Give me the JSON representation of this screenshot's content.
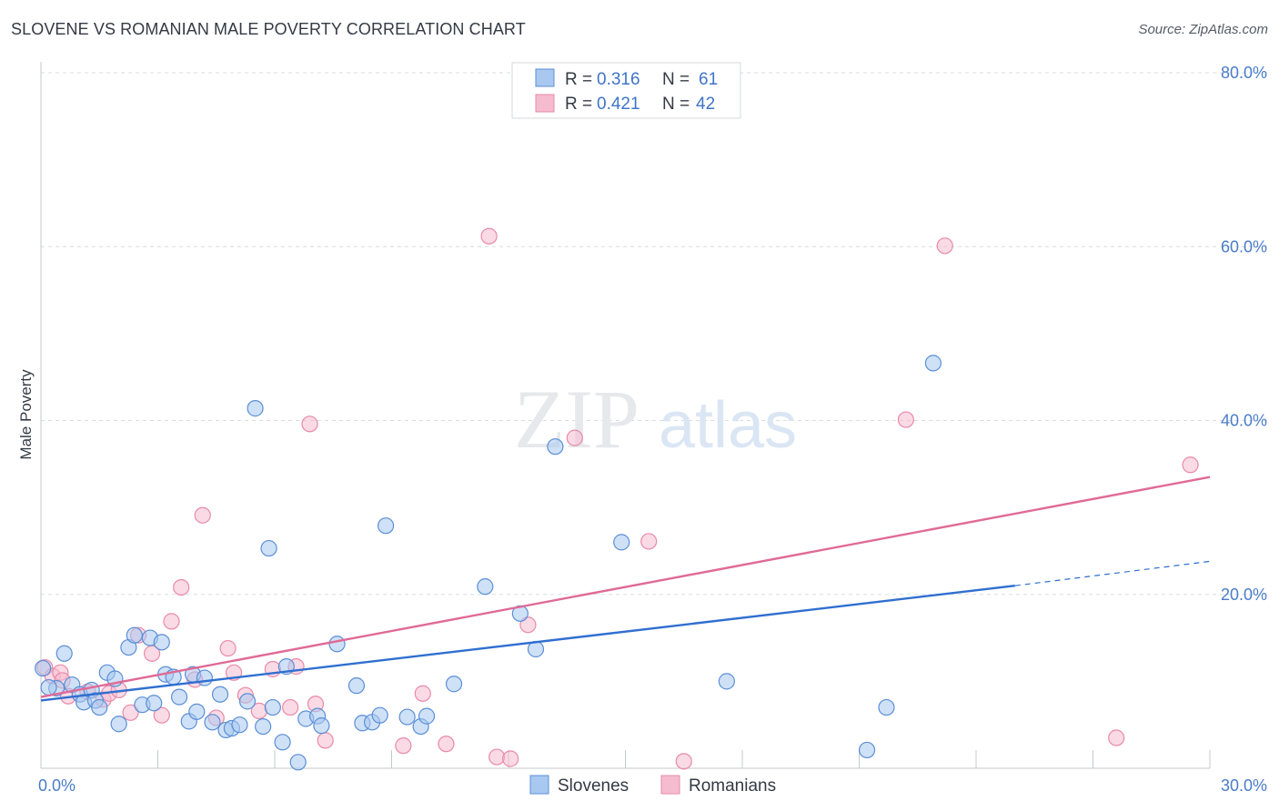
{
  "title": "SLOVENE VS ROMANIAN MALE POVERTY CORRELATION CHART",
  "source": "Source: ZipAtlas.com",
  "watermark": {
    "zip": "ZIP",
    "atlas": "atlas"
  },
  "colors": {
    "slovenes_fill": "#a8c8f0",
    "slovenes_stroke": "#5b8fd6",
    "slovenes_line": "#2f6fd0",
    "romanians_fill": "#f5bcd0",
    "romanians_stroke": "#e88aa8",
    "romanians_line": "#e06a96",
    "tick_label": "#4a7cc9",
    "grid": "#d9dde3"
  },
  "legend": {
    "items": [
      {
        "r_label": "R = ",
        "r_value": "0.316",
        "n_label": "N = ",
        "n_value": "61"
      },
      {
        "r_label": "R = ",
        "r_value": "0.421",
        "n_label": "N = ",
        "n_value": "42"
      }
    ]
  },
  "chart_data": {
    "type": "scatter",
    "title": "SLOVENE VS ROMANIAN MALE POVERTY CORRELATION CHART",
    "xlabel": "",
    "ylabel": "Male Poverty",
    "xlim": [
      0,
      30
    ],
    "ylim": [
      0,
      80
    ],
    "x_tick_labels": [
      {
        "value": 0,
        "label": "0.0%"
      },
      {
        "value": 30,
        "label": "30.0%"
      }
    ],
    "y_tick_labels": [
      {
        "value": 20,
        "label": "20.0%"
      },
      {
        "value": 40,
        "label": "40.0%"
      },
      {
        "value": 60,
        "label": "60.0%"
      },
      {
        "value": 80,
        "label": "80.0%"
      }
    ],
    "y_gridlines": [
      20,
      40,
      60,
      80
    ],
    "legend_position": "top-center",
    "series": [
      {
        "name": "Slovenes",
        "r": 0.316,
        "n": 61,
        "trend": {
          "x_start": 0,
          "y_start": 7.8,
          "x_solid_end": 25,
          "y_solid_end": 21.0,
          "x_end": 30,
          "y_end": 23.8
        },
        "points": [
          [
            0.05,
            11.5
          ],
          [
            0.4,
            9.2
          ],
          [
            0.6,
            13.2
          ],
          [
            0.8,
            9.6
          ],
          [
            1.0,
            8.5
          ],
          [
            1.1,
            7.6
          ],
          [
            1.3,
            9.0
          ],
          [
            1.4,
            7.8
          ],
          [
            1.5,
            7.0
          ],
          [
            1.7,
            11.0
          ],
          [
            1.9,
            10.3
          ],
          [
            2.0,
            5.1
          ],
          [
            2.25,
            13.9
          ],
          [
            2.4,
            15.3
          ],
          [
            2.6,
            7.3
          ],
          [
            2.8,
            15.0
          ],
          [
            2.9,
            7.5
          ],
          [
            3.1,
            14.5
          ],
          [
            3.2,
            10.8
          ],
          [
            3.4,
            10.5
          ],
          [
            3.55,
            8.2
          ],
          [
            3.8,
            5.4
          ],
          [
            3.9,
            10.8
          ],
          [
            4.0,
            6.5
          ],
          [
            4.2,
            10.4
          ],
          [
            4.4,
            5.3
          ],
          [
            4.6,
            8.5
          ],
          [
            4.75,
            4.4
          ],
          [
            4.9,
            4.6
          ],
          [
            5.1,
            5.0
          ],
          [
            5.3,
            7.7
          ],
          [
            5.5,
            41.4
          ],
          [
            5.7,
            4.8
          ],
          [
            5.85,
            25.3
          ],
          [
            5.95,
            7.0
          ],
          [
            6.2,
            3.0
          ],
          [
            6.3,
            11.7
          ],
          [
            6.6,
            0.7
          ],
          [
            6.8,
            5.7
          ],
          [
            7.1,
            6.0
          ],
          [
            7.2,
            4.9
          ],
          [
            7.6,
            14.3
          ],
          [
            8.1,
            9.5
          ],
          [
            8.25,
            5.2
          ],
          [
            8.5,
            5.3
          ],
          [
            8.7,
            6.1
          ],
          [
            8.85,
            27.9
          ],
          [
            9.4,
            5.9
          ],
          [
            9.75,
            4.8
          ],
          [
            9.9,
            6.0
          ],
          [
            10.6,
            9.7
          ],
          [
            11.4,
            20.9
          ],
          [
            12.3,
            17.8
          ],
          [
            12.7,
            13.7
          ],
          [
            13.2,
            37.0
          ],
          [
            14.9,
            26.0
          ],
          [
            17.6,
            10.0
          ],
          [
            21.2,
            2.1
          ],
          [
            21.7,
            7.0
          ],
          [
            22.9,
            46.6
          ],
          [
            0.2,
            9.3
          ]
        ]
      },
      {
        "name": "Romanians",
        "r": 0.421,
        "n": 42,
        "trend": {
          "x_start": 0,
          "y_start": 8.2,
          "x_end": 30,
          "y_end": 33.5
        },
        "points": [
          [
            0.1,
            11.6
          ],
          [
            0.3,
            10.6
          ],
          [
            0.5,
            11.0
          ],
          [
            0.7,
            8.3
          ],
          [
            1.2,
            8.8
          ],
          [
            1.6,
            7.9
          ],
          [
            1.75,
            8.6
          ],
          [
            2.0,
            9.0
          ],
          [
            2.3,
            6.4
          ],
          [
            2.5,
            15.3
          ],
          [
            2.85,
            13.2
          ],
          [
            3.1,
            6.1
          ],
          [
            3.35,
            16.9
          ],
          [
            3.6,
            20.8
          ],
          [
            3.95,
            10.2
          ],
          [
            4.15,
            29.1
          ],
          [
            4.5,
            5.8
          ],
          [
            4.8,
            13.8
          ],
          [
            4.95,
            11.0
          ],
          [
            5.25,
            8.4
          ],
          [
            5.6,
            6.6
          ],
          [
            5.95,
            11.4
          ],
          [
            6.4,
            7.0
          ],
          [
            6.55,
            11.7
          ],
          [
            6.9,
            39.6
          ],
          [
            7.05,
            7.4
          ],
          [
            7.3,
            3.2
          ],
          [
            9.3,
            2.6
          ],
          [
            9.8,
            8.6
          ],
          [
            10.4,
            2.8
          ],
          [
            11.5,
            61.2
          ],
          [
            11.7,
            1.3
          ],
          [
            12.05,
            1.1
          ],
          [
            12.5,
            16.5
          ],
          [
            13.7,
            38.0
          ],
          [
            15.6,
            26.1
          ],
          [
            16.5,
            0.8
          ],
          [
            22.2,
            40.1
          ],
          [
            23.2,
            60.1
          ],
          [
            27.6,
            3.5
          ],
          [
            29.5,
            34.9
          ],
          [
            0.55,
            10.1
          ]
        ]
      }
    ]
  },
  "bottom_legend": [
    {
      "label": "Slovenes"
    },
    {
      "label": "Romanians"
    }
  ]
}
